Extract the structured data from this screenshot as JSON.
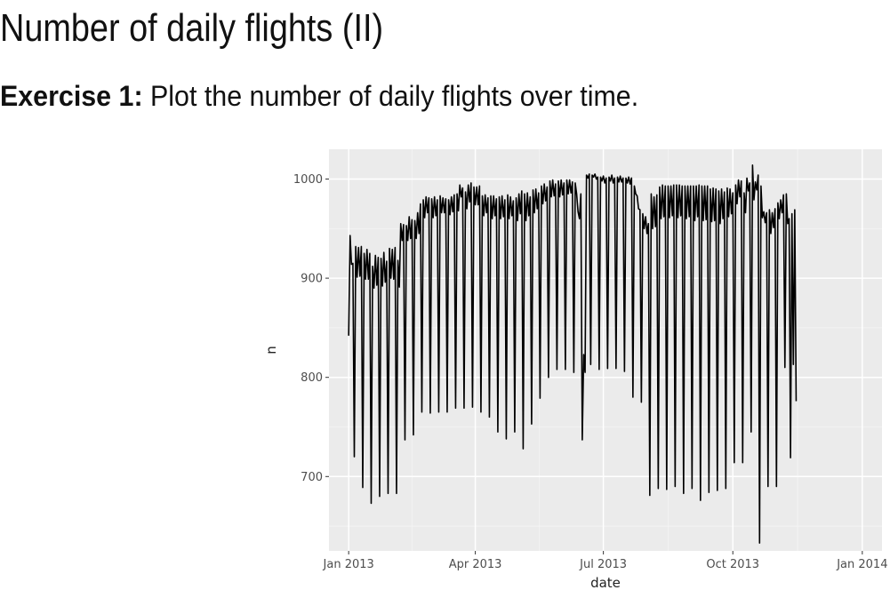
{
  "slide": {
    "title": "Number of daily flights (II)",
    "exercise_label": "Exercise 1:",
    "exercise_text": " Plot the number of daily flights over time."
  },
  "chart_data": {
    "type": "line",
    "xlabel": "date",
    "ylabel": "n",
    "x_ticks": [
      "Jan 2013",
      "Apr 2013",
      "Jul 2013",
      "Oct 2013",
      "Jan 2014"
    ],
    "y_ticks": [
      700,
      800,
      900,
      1000
    ],
    "ylim": [
      625,
      1030
    ],
    "xlim": [
      "2012-12-18",
      "2014-01-15"
    ],
    "background": "#ebebeb",
    "grid": true,
    "line_color": "#000000",
    "x_start": "2013-01-01",
    "x_step": "1 day",
    "series": [
      {
        "values": [
          842,
          943,
          914,
          915,
          720,
          932,
          901,
          931,
          902,
          932,
          689,
          925,
          899,
          929,
          899,
          925,
          673,
          912,
          890,
          923,
          893,
          921,
          680,
          920,
          892,
          926,
          896,
          917,
          683,
          930,
          900,
          929,
          899,
          931,
          683,
          918,
          891,
          955,
          938,
          954,
          737,
          953,
          938,
          962,
          940,
          959,
          742,
          958,
          940,
          966,
          945,
          975,
          765,
          979,
          961,
          982,
          966,
          981,
          764,
          980,
          961,
          982,
          963,
          979,
          765,
          983,
          966,
          981,
          966,
          980,
          765,
          979,
          964,
          982,
          967,
          984,
          769,
          985,
          968,
          994,
          982,
          991,
          769,
          987,
          970,
          994,
          977,
          996,
          770,
          992,
          974,
          992,
          974,
          993,
          765,
          983,
          963,
          984,
          966,
          981,
          760,
          983,
          960,
          983,
          963,
          980,
          745,
          982,
          960,
          983,
          962,
          979,
          738,
          984,
          960,
          982,
          963,
          978,
          745,
          981,
          958,
          985,
          965,
          988,
          728,
          985,
          958,
          986,
          963,
          982,
          753,
          989,
          966,
          990,
          970,
          986,
          779,
          993,
          975,
          995,
          978,
          992,
          800,
          998,
          982,
          999,
          983,
          995,
          808,
          998,
          982,
          999,
          984,
          996,
          808,
          999,
          985,
          999,
          986,
          997,
          805,
          996,
          985,
          967,
          960,
          985,
          737,
          823,
          805,
          1004,
          1001,
          1005,
          813,
          1004,
          1002,
          1005,
          1000,
          1002,
          808,
          1002,
          998,
          1003,
          996,
          1001,
          809,
          1002,
          998,
          1004,
          996,
          1001,
          809,
          1002,
          997,
          1003,
          997,
          1001,
          806,
          1001,
          996,
          1002,
          995,
          1001,
          780,
          993,
          985,
          983,
          970,
          969,
          775,
          965,
          950,
          962,
          945,
          955,
          681,
          985,
          950,
          982,
          952,
          984,
          688,
          992,
          960,
          994,
          962,
          993,
          687,
          993,
          961,
          993,
          963,
          994,
          690,
          994,
          961,
          994,
          963,
          993,
          683,
          993,
          960,
          993,
          962,
          993,
          688,
          993,
          958,
          993,
          962,
          994,
          676,
          993,
          958,
          993,
          959,
          993,
          684,
          990,
          957,
          991,
          958,
          990,
          686,
          988,
          955,
          990,
          960,
          987,
          688,
          991,
          962,
          990,
          965,
          986,
          714,
          994,
          975,
          999,
          982,
          998,
          714,
          986,
          966,
          1001,
          988,
          996,
          745,
          1014,
          979,
          997,
          989,
          1004,
          633,
          993,
          961,
          967,
          956,
          966,
          690,
          969,
          945,
          966,
          951,
          970,
          690,
          976,
          960,
          979,
          966,
          984,
          810,
          985,
          955,
          960,
          719,
          965,
          813,
          969,
          776
        ]
      }
    ]
  }
}
